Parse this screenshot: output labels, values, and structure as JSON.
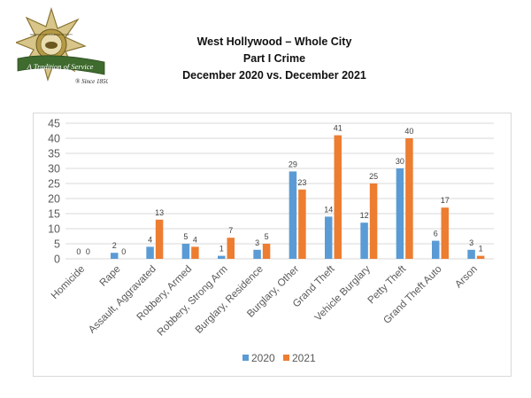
{
  "logo": {
    "badge_text": "SHERIFF LOS ANGELES COUNTY",
    "motto": "A Tradition of Service",
    "since": "® Since 1850"
  },
  "header": {
    "line1": "West Hollywood – Whole City",
    "line2": "Part I Crime",
    "line3": "December 2020 vs. December 2021"
  },
  "colors": {
    "series_2020": "#5b9bd5",
    "series_2021": "#ed7d31",
    "grid": "#d9d9d9",
    "axis_text": "#595959"
  },
  "chart_data": {
    "type": "bar",
    "categories": [
      "Homicide",
      "Rape",
      "Assault, Aggravated",
      "Robbery, Armed",
      "Robbery, Strong Arm",
      "Burglary, Residence",
      "Burglary, Other",
      "Grand Theft",
      "Vehicle Burglary",
      "Petty Theft",
      "Grand Theft Auto",
      "Arson"
    ],
    "series": [
      {
        "name": "2020",
        "values": [
          0,
          2,
          4,
          5,
          1,
          3,
          29,
          14,
          12,
          30,
          6,
          3
        ]
      },
      {
        "name": "2021",
        "values": [
          0,
          0,
          13,
          4,
          7,
          5,
          23,
          41,
          25,
          40,
          17,
          1
        ]
      }
    ],
    "ylim": [
      0,
      45
    ],
    "yticks": [
      0,
      5,
      10,
      15,
      20,
      25,
      30,
      35,
      40,
      45
    ],
    "grid": true,
    "legend_position": "bottom"
  }
}
